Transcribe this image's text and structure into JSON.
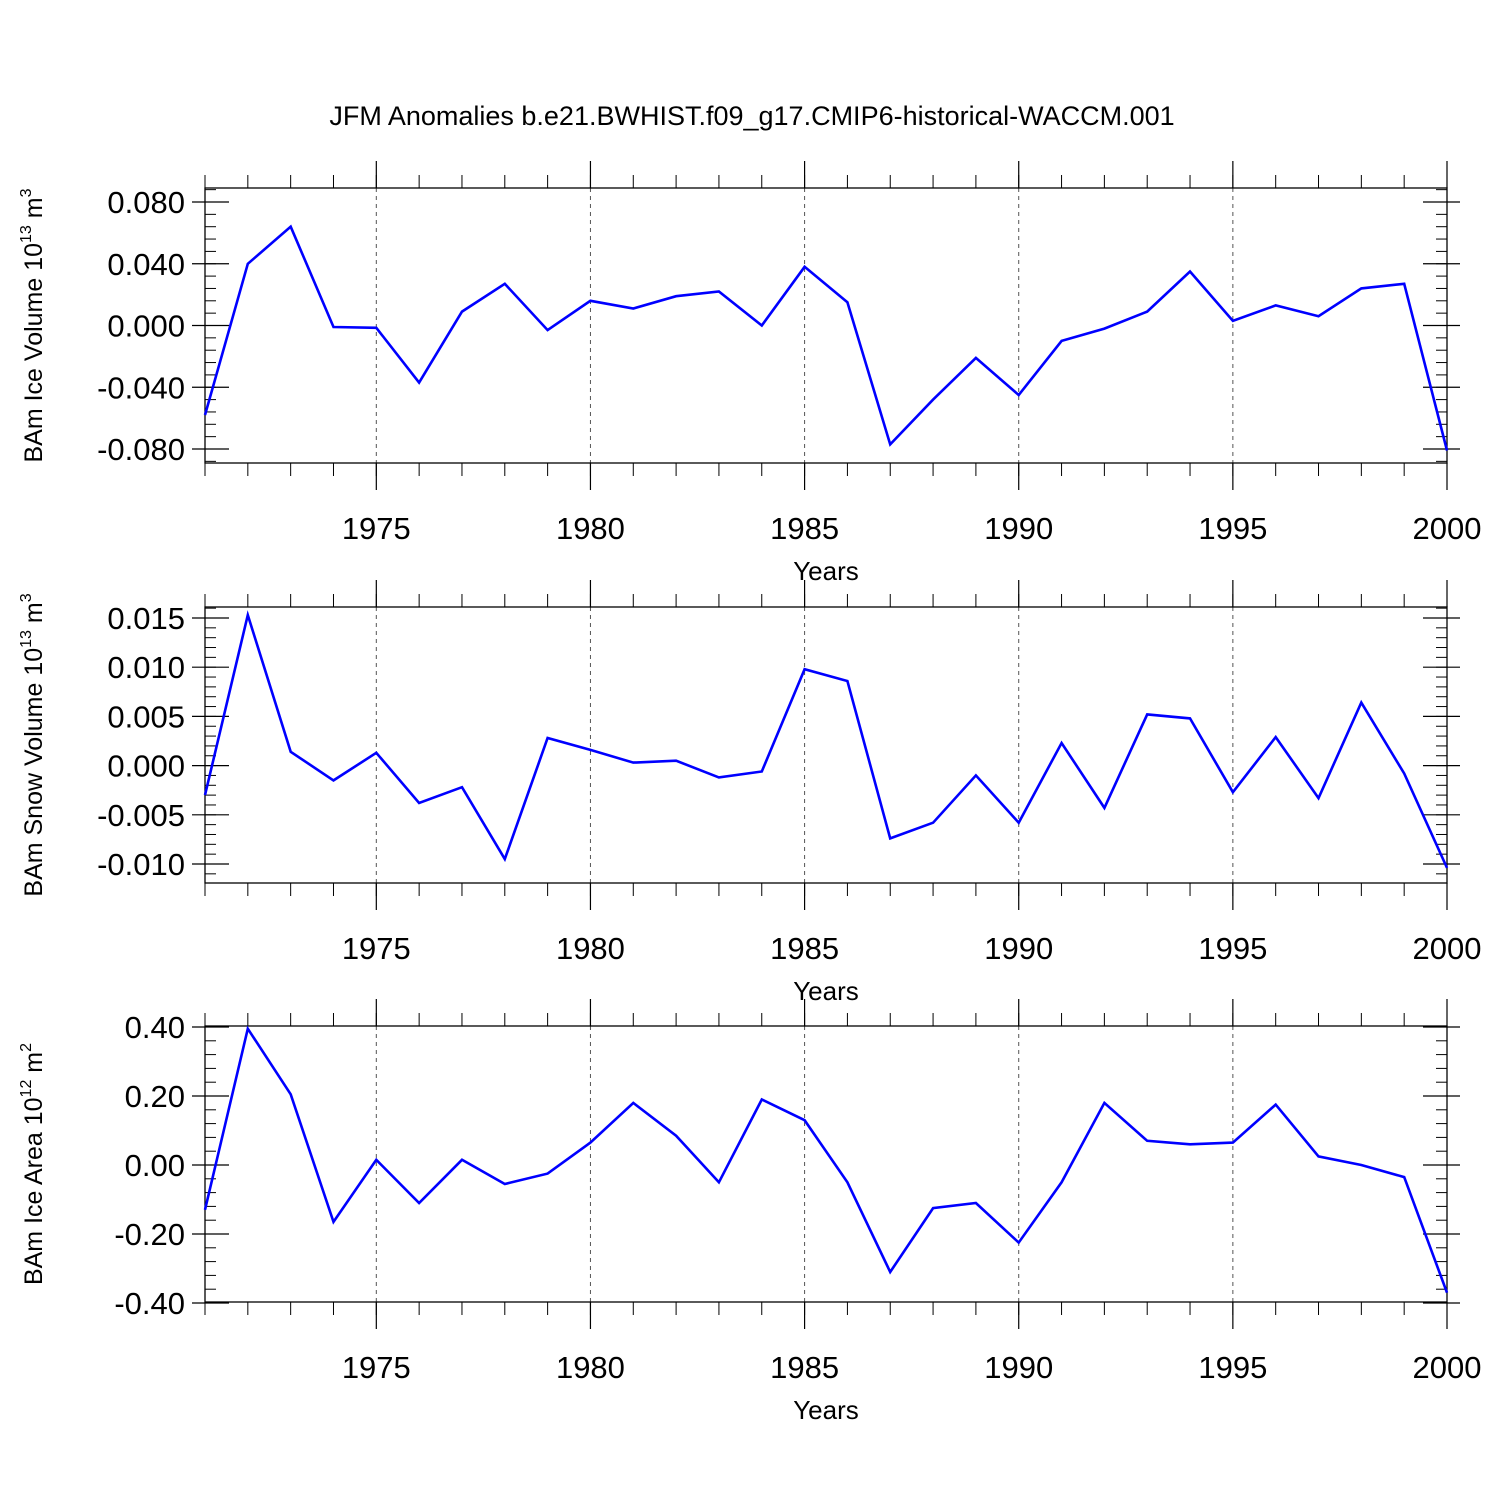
{
  "figure": {
    "title": "JFM Anomalies b.e21.BWHIST.f09_g17.CMIP6-historical-WACCM.001",
    "line_color": "#0000ff"
  },
  "chart_data": [
    {
      "type": "line",
      "ylabel": "BAm Ice Volume 10^13 m^3",
      "ylabel_parts": {
        "text": "BAm Ice Volume 10",
        "exp1": "13",
        "mid": " m",
        "exp2": "3"
      },
      "xlabel": "Years",
      "xlim": [
        1971,
        2000
      ],
      "ylim": [
        -0.09,
        0.09
      ],
      "grid": "x-dashed",
      "x_ticks": [
        1975,
        1980,
        1985,
        1990,
        1995,
        2000
      ],
      "x_tick_labels": [
        "1975",
        "1980",
        "1985",
        "1990",
        "1995",
        "2000"
      ],
      "y_ticks": [
        -0.08,
        -0.04,
        0.0,
        0.04,
        0.08
      ],
      "y_tick_labels": [
        "-0.080",
        "-0.040",
        "0.000",
        "0.040",
        "0.080"
      ],
      "x": [
        1971,
        1972,
        1973,
        1974,
        1975,
        1976,
        1977,
        1978,
        1979,
        1980,
        1981,
        1982,
        1983,
        1984,
        1985,
        1986,
        1987,
        1988,
        1989,
        1990,
        1991,
        1992,
        1993,
        1994,
        1995,
        1996,
        1997,
        1998,
        1999,
        2000
      ],
      "values": [
        -0.058,
        0.04,
        0.064,
        -0.001,
        -0.0015,
        -0.037,
        0.009,
        0.027,
        -0.003,
        0.016,
        0.011,
        0.019,
        0.022,
        0.0,
        0.038,
        0.015,
        -0.077,
        -0.048,
        -0.021,
        -0.045,
        -0.01,
        -0.002,
        0.009,
        0.035,
        0.003,
        0.013,
        0.006,
        0.024,
        0.027,
        -0.081
      ]
    },
    {
      "type": "line",
      "ylabel": "BAm Snow Volume 10^13 m^3",
      "ylabel_parts": {
        "text": "BAm Snow Volume 10",
        "exp1": "13",
        "mid": " m",
        "exp2": "3"
      },
      "xlabel": "Years",
      "xlim": [
        1971,
        2000
      ],
      "ylim": [
        -0.012,
        0.016
      ],
      "grid": "x-dashed",
      "x_ticks": [
        1975,
        1980,
        1985,
        1990,
        1995,
        2000
      ],
      "x_tick_labels": [
        "1975",
        "1980",
        "1985",
        "1990",
        "1995",
        "2000"
      ],
      "y_ticks": [
        -0.01,
        -0.005,
        0.0,
        0.005,
        0.01,
        0.015
      ],
      "y_tick_labels": [
        "-0.010",
        "-0.005",
        "0.000",
        "0.005",
        "0.010",
        "0.015"
      ],
      "x": [
        1971,
        1972,
        1973,
        1974,
        1975,
        1976,
        1977,
        1978,
        1979,
        1980,
        1981,
        1982,
        1983,
        1984,
        1985,
        1986,
        1987,
        1988,
        1989,
        1990,
        1991,
        1992,
        1993,
        1994,
        1995,
        1996,
        1997,
        1998,
        1999,
        2000
      ],
      "values": [
        -0.003,
        0.0153,
        0.0014,
        -0.0015,
        0.0013,
        -0.0038,
        -0.0022,
        -0.0095,
        0.0028,
        0.0016,
        0.0003,
        0.0005,
        -0.0012,
        -0.0006,
        0.0098,
        0.0086,
        -0.0074,
        -0.0058,
        -0.001,
        -0.0058,
        0.0023,
        -0.0043,
        0.0052,
        0.0048,
        -0.0027,
        0.0029,
        -0.0033,
        0.0064,
        -0.0008,
        -0.0104
      ]
    },
    {
      "type": "line",
      "ylabel": "BAm Ice Area 10^12 m^2",
      "ylabel_parts": {
        "text": "BAm Ice Area 10",
        "exp1": "12",
        "mid": " m",
        "exp2": "2"
      },
      "xlabel": "Years",
      "xlim": [
        1971,
        2000
      ],
      "ylim": [
        -0.4,
        0.4
      ],
      "grid": "x-dashed",
      "x_ticks": [
        1975,
        1980,
        1985,
        1990,
        1995,
        2000
      ],
      "x_tick_labels": [
        "1975",
        "1980",
        "1985",
        "1990",
        "1995",
        "2000"
      ],
      "y_ticks": [
        -0.4,
        -0.2,
        0.0,
        0.2,
        0.4
      ],
      "y_tick_labels": [
        "-0.40",
        "-0.20",
        "0.00",
        "0.20",
        "0.40"
      ],
      "x": [
        1971,
        1972,
        1973,
        1974,
        1975,
        1976,
        1977,
        1978,
        1979,
        1980,
        1981,
        1982,
        1983,
        1984,
        1985,
        1986,
        1987,
        1988,
        1989,
        1990,
        1991,
        1992,
        1993,
        1994,
        1995,
        1996,
        1997,
        1998,
        1999,
        2000
      ],
      "values": [
        -0.13,
        0.395,
        0.205,
        -0.165,
        0.015,
        -0.11,
        0.015,
        -0.055,
        -0.025,
        0.065,
        0.18,
        0.085,
        -0.05,
        0.19,
        0.13,
        -0.05,
        -0.31,
        -0.125,
        -0.11,
        -0.225,
        -0.05,
        0.18,
        0.07,
        0.06,
        0.065,
        0.175,
        0.025,
        0.0,
        -0.035,
        -0.37
      ]
    }
  ]
}
